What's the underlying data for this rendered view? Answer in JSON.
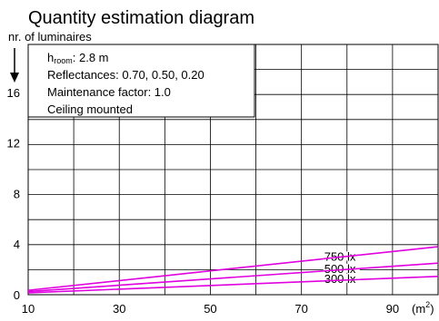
{
  "chart_data": {
    "type": "line",
    "title": "Quantity estimation diagram",
    "ylabel": "nr. of luminaires",
    "xunit_base": "(m",
    "xunit_sup": "2",
    "xunit_close": ")",
    "x_ticks": [
      10,
      30,
      50,
      70,
      90
    ],
    "y_ticks": [
      0,
      4,
      8,
      12,
      16
    ],
    "xlim": [
      10,
      100
    ],
    "ylim": [
      0,
      19.8
    ],
    "grid": true,
    "grid_columns": 9,
    "grid_rows": 10,
    "notes": {
      "h_main": "h",
      "h_sub": "room",
      "h_value": ": 2.8 m",
      "reflectances": "Reflectances: 0.70, 0.50, 0.20",
      "maintenance": "Maintenance factor: 1.0",
      "mounting": "Ceiling mounted"
    },
    "series": [
      {
        "name": "750 lx",
        "x": [
          10,
          100
        ],
        "y": [
          0.35,
          3.8
        ]
      },
      {
        "name": "500 lx",
        "x": [
          10,
          100
        ],
        "y": [
          0.25,
          2.5
        ]
      },
      {
        "name": "300 lx",
        "x": [
          10,
          100
        ],
        "y": [
          0.15,
          1.45
        ]
      }
    ],
    "label_anchor_x": [
      75,
      75,
      75
    ],
    "colors": {
      "series": "#e000e0",
      "grid": "#000000",
      "background": "#ffffff"
    }
  }
}
